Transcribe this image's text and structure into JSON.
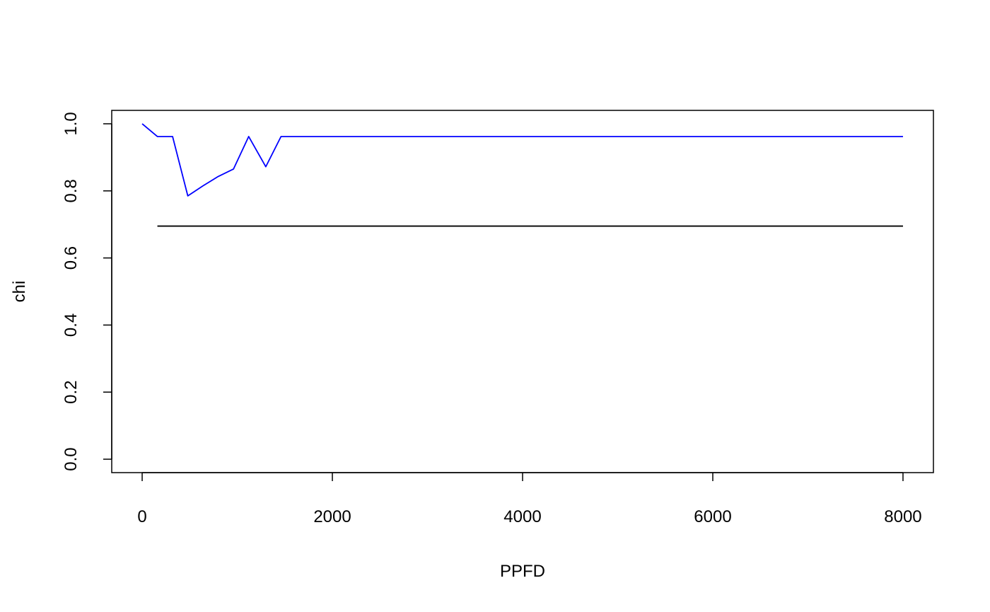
{
  "chart_data": {
    "type": "line",
    "title": "",
    "xlabel": "PPFD",
    "ylabel": "chi",
    "xlim": [
      -320,
      8320
    ],
    "ylim": [
      -0.04,
      1.04
    ],
    "x_ticks": [
      0,
      2000,
      4000,
      6000,
      8000
    ],
    "x_tick_labels": [
      "0",
      "2000",
      "4000",
      "6000",
      "8000"
    ],
    "y_ticks": [
      0.0,
      0.2,
      0.4,
      0.6,
      0.8,
      1.0
    ],
    "y_tick_labels": [
      "0.0",
      "0.2",
      "0.4",
      "0.6",
      "0.8",
      "1.0"
    ],
    "grid": false,
    "legend": "none",
    "series": [
      {
        "color": "#0000ff",
        "points": [
          [
            0,
            1.0
          ],
          [
            160,
            0.962
          ],
          [
            320,
            0.962
          ],
          [
            480,
            0.785
          ],
          [
            640,
            0.815
          ],
          [
            800,
            0.843
          ],
          [
            960,
            0.865
          ],
          [
            1120,
            0.962
          ],
          [
            1300,
            0.872
          ],
          [
            1460,
            0.962
          ],
          [
            8000,
            0.962
          ]
        ]
      },
      {
        "color": "#000000",
        "points": [
          [
            160,
            0.695
          ],
          [
            8000,
            0.695
          ]
        ]
      }
    ]
  }
}
